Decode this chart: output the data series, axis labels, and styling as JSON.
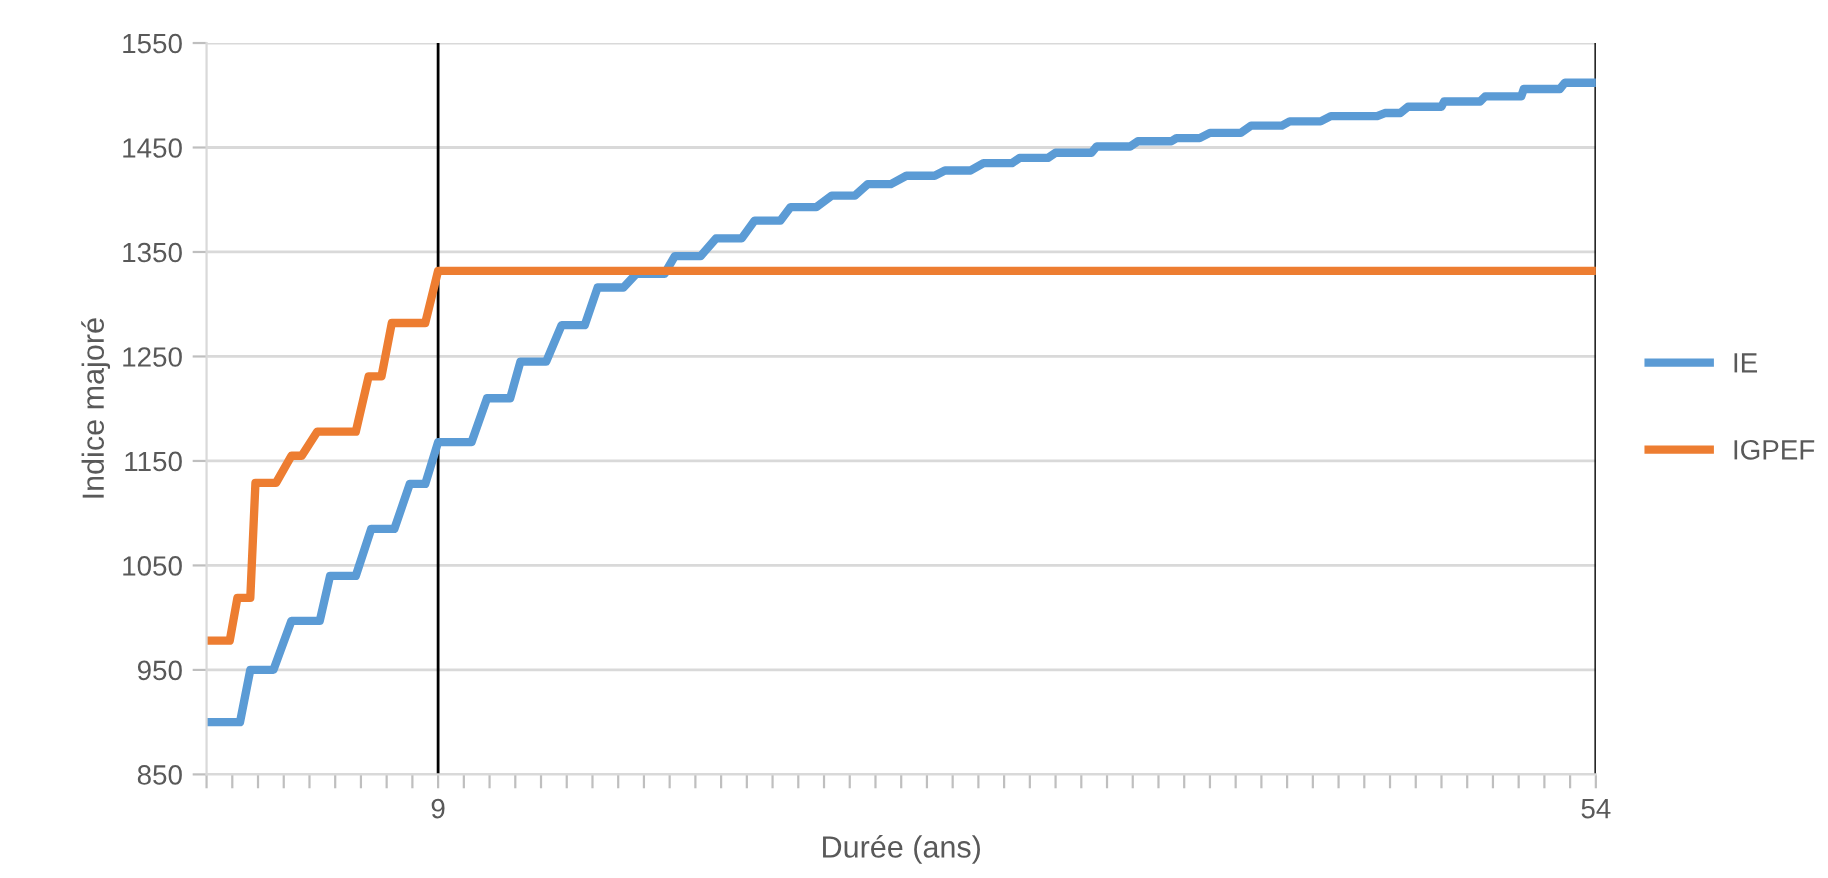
{
  "chart_data": {
    "type": "line",
    "xlabel": "Durée (ans)",
    "ylabel": "Indice majoré",
    "xlim": [
      0,
      54
    ],
    "ylim": [
      850,
      1550
    ],
    "yticks": [
      850,
      950,
      1050,
      1150,
      1250,
      1350,
      1450,
      1550
    ],
    "xticks": [
      {
        "value": 0,
        "label": null
      },
      {
        "value": 1,
        "label": null
      },
      {
        "value": 2,
        "label": null
      },
      {
        "value": 3,
        "label": null
      },
      {
        "value": 4,
        "label": null
      },
      {
        "value": 5,
        "label": null
      },
      {
        "value": 6,
        "label": null
      },
      {
        "value": 7,
        "label": null
      },
      {
        "value": 8,
        "label": null
      },
      9,
      {
        "value": 10,
        "label": null
      },
      {
        "value": 11,
        "label": null
      },
      {
        "value": 12,
        "label": null
      },
      {
        "value": 13,
        "label": null
      },
      {
        "value": 14,
        "label": null
      },
      {
        "value": 15,
        "label": null
      },
      {
        "value": 16,
        "label": null
      },
      {
        "value": 17,
        "label": null
      },
      {
        "value": 18,
        "label": null
      },
      {
        "value": 19,
        "label": null
      },
      {
        "value": 20,
        "label": null
      },
      {
        "value": 21,
        "label": null
      },
      {
        "value": 22,
        "label": null
      },
      {
        "value": 23,
        "label": null
      },
      {
        "value": 24,
        "label": null
      },
      {
        "value": 25,
        "label": null
      },
      {
        "value": 26,
        "label": null
      },
      {
        "value": 27,
        "label": null
      },
      {
        "value": 28,
        "label": null
      },
      {
        "value": 29,
        "label": null
      },
      {
        "value": 30,
        "label": null
      },
      {
        "value": 31,
        "label": null
      },
      {
        "value": 32,
        "label": null
      },
      {
        "value": 33,
        "label": null
      },
      {
        "value": 34,
        "label": null
      },
      {
        "value": 35,
        "label": null
      },
      {
        "value": 36,
        "label": null
      },
      {
        "value": 37,
        "label": null
      },
      {
        "value": 38,
        "label": null
      },
      {
        "value": 39,
        "label": null
      },
      {
        "value": 40,
        "label": null
      },
      {
        "value": 41,
        "label": null
      },
      {
        "value": 42,
        "label": null
      },
      {
        "value": 43,
        "label": null
      },
      {
        "value": 44,
        "label": null
      },
      {
        "value": 45,
        "label": null
      },
      {
        "value": 46,
        "label": null
      },
      {
        "value": 47,
        "label": null
      },
      {
        "value": 48,
        "label": null
      },
      {
        "value": 49,
        "label": null
      },
      {
        "value": 50,
        "label": null
      },
      {
        "value": 51,
        "label": null
      },
      {
        "value": 52,
        "label": null
      },
      {
        "value": 53,
        "label": null
      },
      54
    ],
    "grid": "y",
    "legend": "right",
    "marker": "none",
    "line_style": "solid",
    "ref_lines": [
      {
        "axis": "x",
        "value": 9,
        "color": "#000000"
      },
      {
        "axis": "x",
        "value": 54,
        "color": "#000000"
      }
    ],
    "series": [
      {
        "name": "IE",
        "color": "#5b9bd5",
        "x": [
          0,
          1.3,
          1.7,
          2.6,
          3.3,
          4.4,
          4.8,
          5.8,
          6.4,
          7.3,
          7.9,
          8.5,
          9,
          10.3,
          10.9,
          11.8,
          12.2,
          13.2,
          13.8,
          14.7,
          15.2,
          16.2,
          16.7,
          17.8,
          18.2,
          19.2,
          19.8,
          20.8,
          21.3,
          22.3,
          22.7,
          23.7,
          24.3,
          25.2,
          25.7,
          26.6,
          27.2,
          28.3,
          28.7,
          29.7,
          30.2,
          31.3,
          31.6,
          32.7,
          33.0,
          34.4,
          34.6,
          35.9,
          36.2,
          37.5,
          37.7,
          38.6,
          39.0,
          40.2,
          40.6,
          41.8,
          42.1,
          43.3,
          43.7,
          45.5,
          45.8,
          46.4,
          46.7,
          48.0,
          48.1,
          49.5,
          49.7,
          51.1,
          51.2,
          52.6,
          52.8,
          54
        ],
        "values": [
          900,
          900,
          950,
          950,
          997,
          997,
          1040,
          1040,
          1085,
          1085,
          1128,
          1128,
          1168,
          1168,
          1210,
          1210,
          1245,
          1245,
          1280,
          1280,
          1316,
          1316,
          1329,
          1329,
          1346,
          1346,
          1363,
          1363,
          1380,
          1380,
          1393,
          1393,
          1404,
          1404,
          1415,
          1415,
          1423,
          1423,
          1428,
          1428,
          1435,
          1435,
          1440,
          1440,
          1445,
          1445,
          1451,
          1451,
          1456,
          1456,
          1459,
          1459,
          1464,
          1464,
          1471,
          1471,
          1475,
          1475,
          1480,
          1480,
          1483,
          1483,
          1489,
          1489,
          1494,
          1494,
          1499,
          1499,
          1506,
          1506,
          1512,
          1512
        ]
      },
      {
        "name": "IGPEF",
        "color": "#ed7d31",
        "x": [
          0,
          0.9,
          1.2,
          1.7,
          1.9,
          2.7,
          3.3,
          3.7,
          4.3,
          5.8,
          6.3,
          6.8,
          7.2,
          8.5,
          9,
          54
        ],
        "values": [
          978,
          978,
          1019,
          1019,
          1129,
          1129,
          1155,
          1155,
          1178,
          1178,
          1231,
          1231,
          1282,
          1282,
          1332,
          1332
        ]
      }
    ]
  }
}
